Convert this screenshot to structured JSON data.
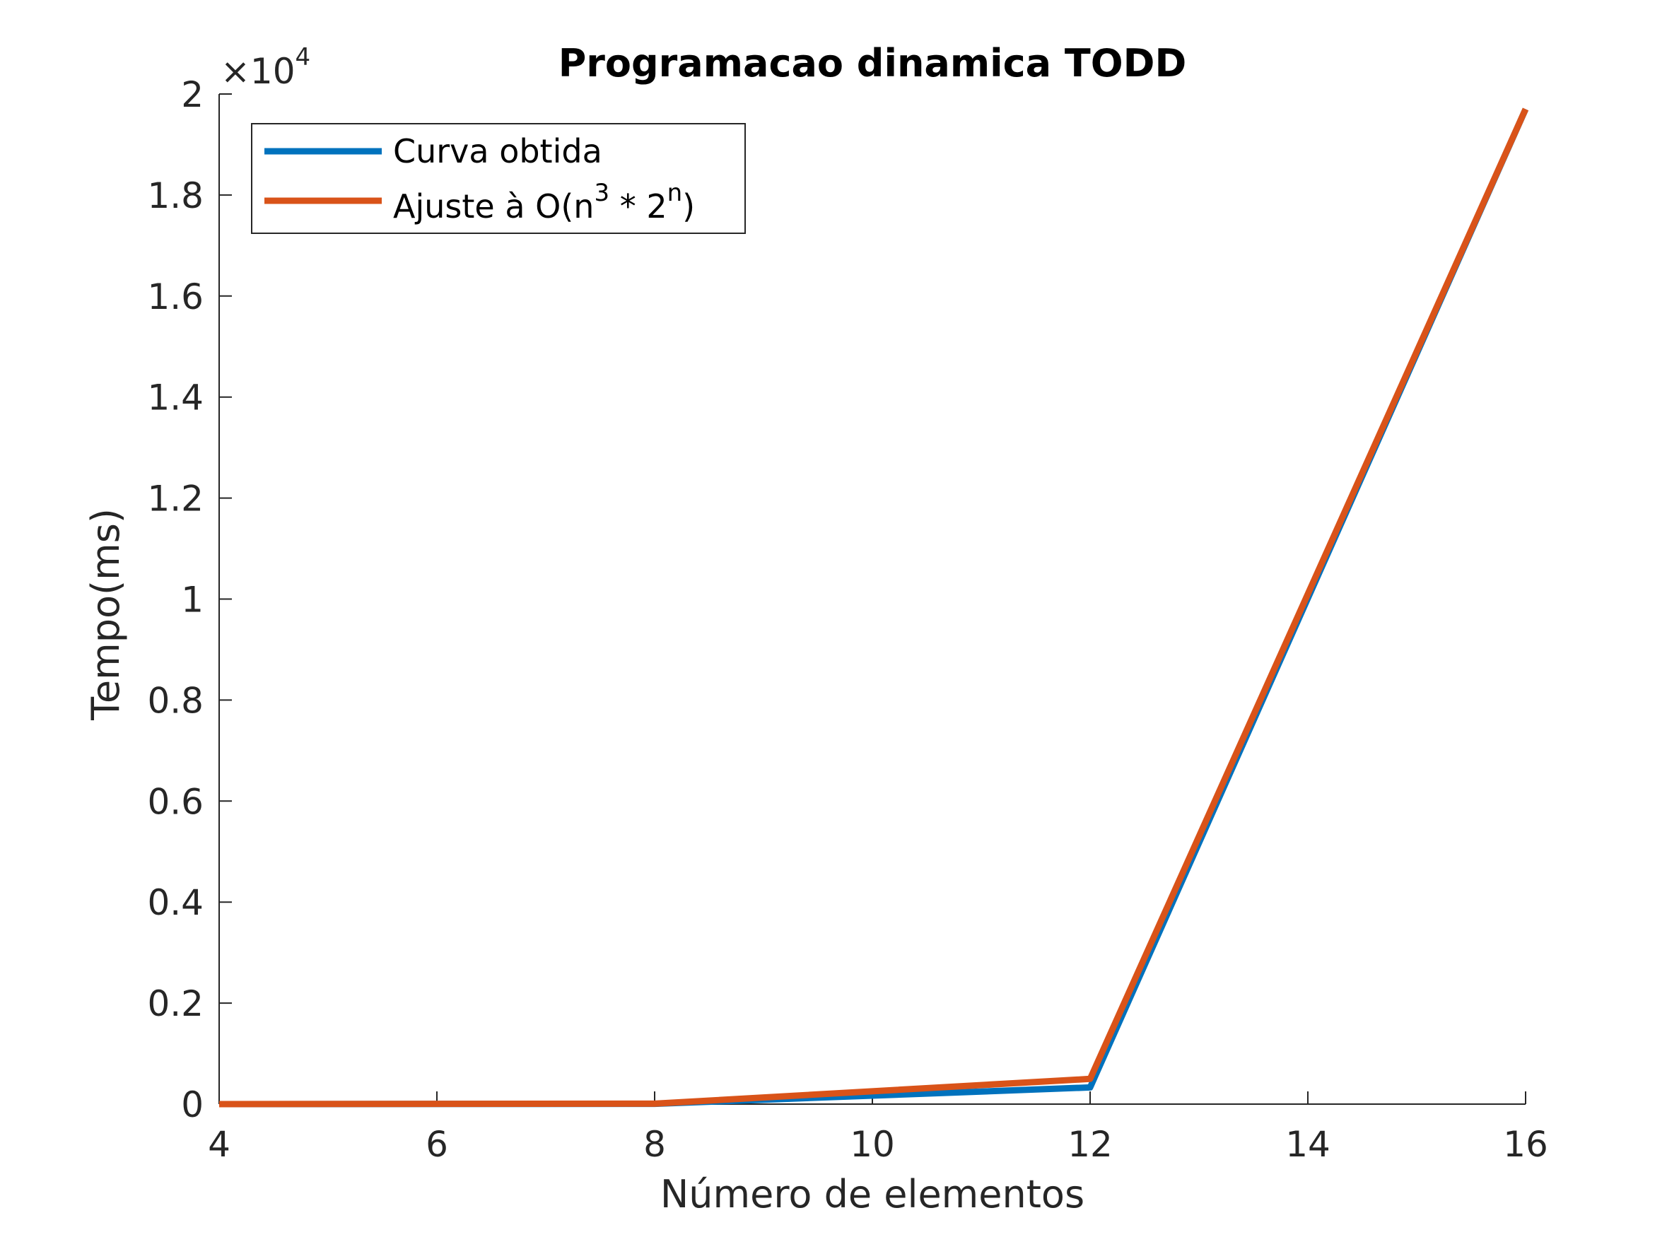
{
  "chart_data": {
    "type": "line",
    "title": "Programacao dinamica TODD",
    "xlabel": "Número de elementos",
    "ylabel": "Tempo(ms)",
    "xlim": [
      4,
      16
    ],
    "ylim": [
      0,
      20000
    ],
    "x_ticks": [
      4,
      6,
      8,
      10,
      12,
      14,
      16
    ],
    "y_ticks": [
      0,
      2000,
      4000,
      6000,
      8000,
      10000,
      12000,
      14000,
      16000,
      18000,
      20000
    ],
    "y_tick_labels": [
      "0",
      "0.2",
      "0.4",
      "0.6",
      "0.8",
      "1",
      "1.2",
      "1.4",
      "1.6",
      "1.8",
      "2"
    ],
    "y_exponent": {
      "base": "×10",
      "power": "4"
    },
    "grid": false,
    "legend_position": "top-left",
    "x": [
      4,
      8,
      12,
      16
    ],
    "series": [
      {
        "name": "Curva obtida",
        "color": "#0072BD",
        "values": [
          0,
          5,
          330,
          19700
        ]
      },
      {
        "name": "Ajuste à O(n³ * 2ⁿ)",
        "name_parts": {
          "base": "Ajuste à O(n",
          "sup1": "3",
          "mid": " * 2",
          "sup2": "n",
          "end": ")"
        },
        "color": "#D95319",
        "values": [
          0,
          8,
          500,
          19700
        ]
      }
    ]
  }
}
